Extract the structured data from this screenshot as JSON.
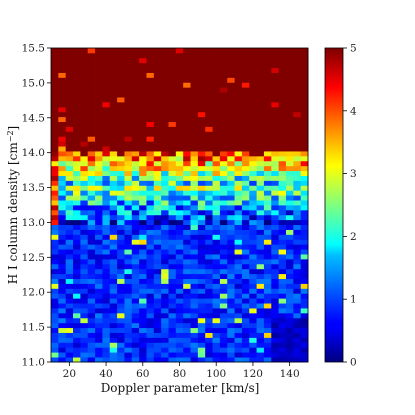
{
  "chart_data": {
    "type": "heatmap",
    "title": "",
    "xlabel": "Doppler parameter [km/s]",
    "ylabel": "H I column density [cm",
    "ylabel_sup": "−2",
    "ylabel_close": "]",
    "xlim": [
      10,
      150
    ],
    "ylim": [
      11.0,
      15.5
    ],
    "x_ticks": [
      "20",
      "40",
      "60",
      "80",
      "100",
      "120",
      "140"
    ],
    "y_ticks": [
      "11.0",
      "11.5",
      "12.0",
      "12.5",
      "13.0",
      "13.5",
      "14.0",
      "14.5",
      "15.0",
      "15.5"
    ],
    "colorbar": {
      "range": [
        0,
        5
      ],
      "ticks": [
        "0",
        "1",
        "2",
        "3",
        "4",
        "5"
      ],
      "colormap": "jet"
    },
    "grid": {
      "x_bins": 35,
      "y_bins": 64,
      "saturation_logN": 14.05,
      "transition_logN": 13.5,
      "low_value_floor": 0.4,
      "description_of_trend": "counts saturate (>=5) above logN~14.05 for all b; mixed 2-5 near 13.5-14.05; mostly 0-1.5 below 13"
    }
  }
}
